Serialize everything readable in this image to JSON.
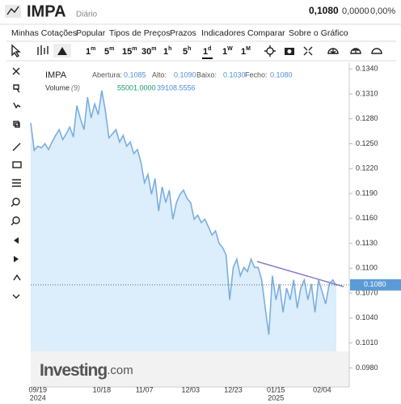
{
  "header": {
    "symbol": "IMPA",
    "interval": "Diário",
    "price": "0,1080",
    "change": "0,0000",
    "change_pct": "0,00%"
  },
  "menu": [
    "Minhas Cotações",
    "Popular",
    "Tipos de Preços",
    "Prazos",
    "Indicadores",
    "Comparar",
    "Sobre o Gráfico"
  ],
  "intervals": [
    {
      "n": "1",
      "u": "m"
    },
    {
      "n": "5",
      "u": "m"
    },
    {
      "n": "15",
      "u": "m"
    },
    {
      "n": "30",
      "u": "m"
    },
    {
      "n": "1",
      "u": "h"
    },
    {
      "n": "5",
      "u": "h"
    },
    {
      "n": "1",
      "u": "d"
    },
    {
      "n": "1",
      "u": "W"
    },
    {
      "n": "1",
      "u": "M"
    }
  ],
  "legend": {
    "symbol": "IMPA",
    "open_label": "Abertura:",
    "open": "0.1085",
    "high_label": "Alto:",
    "high": "0.1090",
    "low_label": "Baixo:",
    "low": "0.1030",
    "close_label": "Fecho:",
    "close": "0.1080",
    "volume_label": "Volume",
    "volume_period": "(9)",
    "volume": "55001.0000",
    "volume_ma": "39108.5556"
  },
  "logo": {
    "main": "Investing",
    "suffix": ".com"
  },
  "chart_data": {
    "type": "line",
    "color": "#7aaee0",
    "values": [
      0.1275,
      0.1242,
      0.1247,
      0.1245,
      0.125,
      0.1243,
      0.1252,
      0.126,
      0.1267,
      0.1255,
      0.1262,
      0.127,
      0.1258,
      0.1296,
      0.128,
      0.1267,
      0.1306,
      0.1281,
      0.1298,
      0.1285,
      0.1314,
      0.129,
      0.1257,
      0.1262,
      0.1267,
      0.1252,
      0.126,
      0.1247,
      0.1252,
      0.1238,
      0.1243,
      0.1228,
      0.1203,
      0.1213,
      0.1189,
      0.1208,
      0.1169,
      0.1198,
      0.1179,
      0.1194,
      0.1159,
      0.1179,
      0.1189,
      0.1194,
      0.1184,
      0.1179,
      0.1159,
      0.1164,
      0.1155,
      0.1159,
      0.115,
      0.114,
      0.1145,
      0.113,
      0.1125,
      0.1116,
      0.1062,
      0.1101,
      0.1111,
      0.1091,
      0.1101,
      0.1096,
      0.1111,
      0.1101,
      0.1101,
      0.1086,
      0.1052,
      0.102,
      0.1091,
      0.1062,
      0.1081,
      0.1047,
      0.1076,
      0.1062,
      0.1086,
      0.1052,
      0.1076,
      0.1086,
      0.1062,
      0.1081,
      0.1047,
      0.1086,
      0.1072,
      0.1057,
      0.1081,
      0.1086,
      0.1079
    ],
    "ylim": [
      0.0957,
      0.1347
    ],
    "yticks": [
      {
        "value": 0.134,
        "label": "0.1340"
      },
      {
        "value": 0.131,
        "label": "0.1310"
      },
      {
        "value": 0.128,
        "label": "0.1280"
      },
      {
        "value": 0.125,
        "label": "0.1250"
      },
      {
        "value": 0.122,
        "label": "0.1220"
      },
      {
        "value": 0.119,
        "label": "0.1190"
      },
      {
        "value": 0.116,
        "label": "0.1160"
      },
      {
        "value": 0.113,
        "label": "0.1130"
      },
      {
        "value": 0.11,
        "label": "0.1100"
      },
      {
        "value": 0.107,
        "label": "0.1070"
      },
      {
        "value": 0.104,
        "label": "0.1040"
      },
      {
        "value": 0.101,
        "label": "0.1010"
      },
      {
        "value": 0.098,
        "label": "0.0980"
      }
    ],
    "xticks": [
      {
        "value": 2,
        "label": "09/19"
      },
      {
        "value": 20,
        "label": "10/18"
      },
      {
        "value": 32,
        "label": "11/07"
      },
      {
        "value": 45,
        "label": "12/03"
      },
      {
        "value": 57,
        "label": "12/23"
      },
      {
        "value": 69,
        "label": "01/15"
      },
      {
        "value": 82,
        "label": "02/04"
      }
    ],
    "year_labels": [
      {
        "value": 2,
        "label": "2024"
      },
      {
        "value": 69,
        "label": "2025"
      }
    ],
    "last_price": {
      "value": 0.108,
      "label": "0.1080"
    }
  }
}
